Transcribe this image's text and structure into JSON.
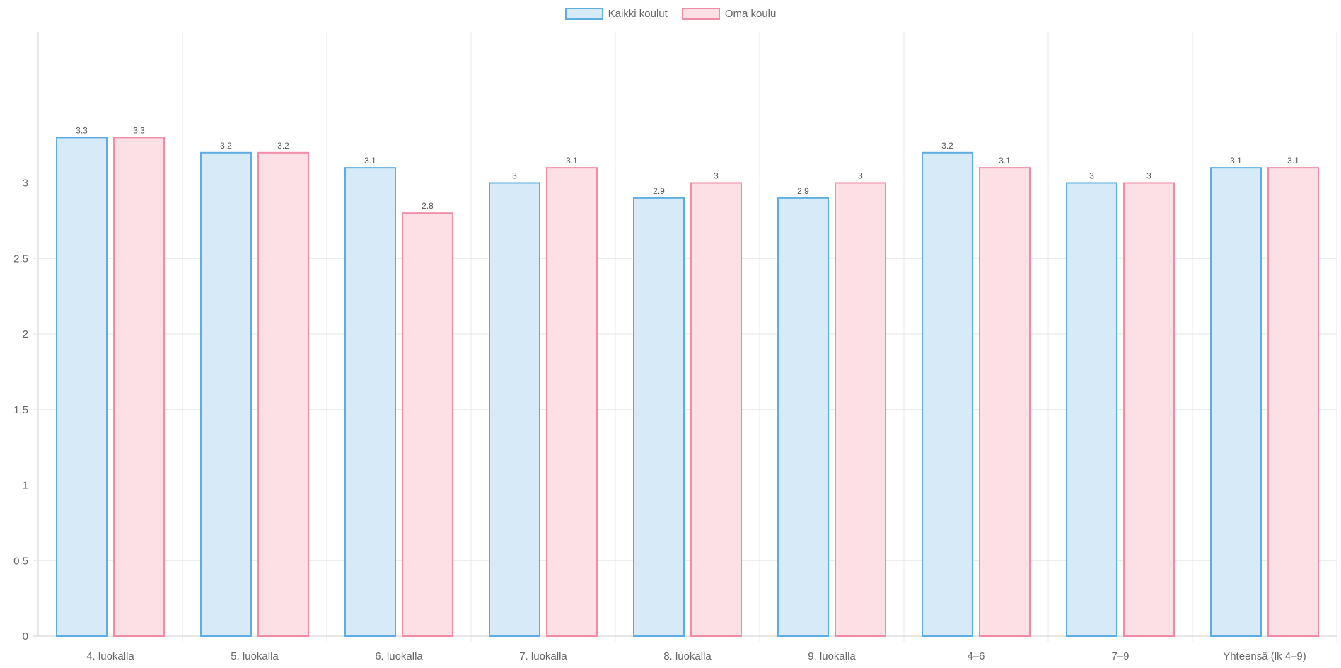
{
  "chart_data": {
    "type": "bar",
    "categories": [
      "4. luokalla",
      "5. luokalla",
      "6. luokalla",
      "7. luokalla",
      "8. luokalla",
      "9. luokalla",
      "4–6",
      "7–9",
      "Yhteensä (lk 4–9)"
    ],
    "series": [
      {
        "name": "Kaikki koulut",
        "values": [
          3.3,
          3.2,
          3.1,
          3,
          2.9,
          2.9,
          3.2,
          3,
          3.1
        ],
        "fill": "#d6eaf8",
        "stroke": "#5dade2"
      },
      {
        "name": "Oma koulu",
        "values": [
          3.3,
          3.2,
          2.8,
          3.1,
          3,
          3,
          3.1,
          3,
          3.1
        ],
        "fill": "#fde0e6",
        "stroke": "#f08ca5"
      }
    ],
    "yticks": [
      "0",
      "0.5",
      "1",
      "1.5",
      "2",
      "2.5",
      "3"
    ],
    "ylim": [
      0,
      4
    ],
    "grid": true,
    "legend": "top-center",
    "data_labels": true
  }
}
